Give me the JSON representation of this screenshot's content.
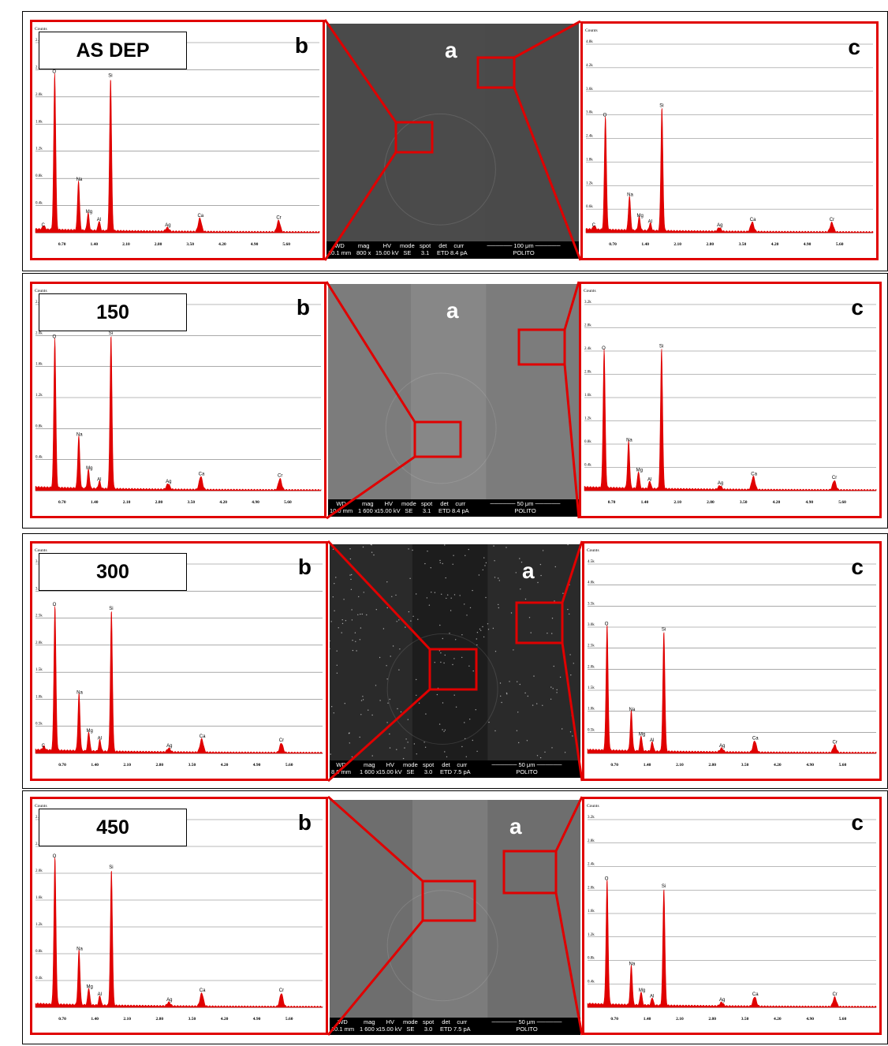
{
  "colors": {
    "spectrum": "#e00000",
    "frame": "#e00000"
  },
  "spectrum_labels": {
    "counts": "Counts",
    "x_ticks": [
      "0.70",
      "1.40",
      "2.10",
      "2.80",
      "3.50",
      "4.20",
      "4.90",
      "5.60"
    ],
    "peaks": [
      "C",
      "O",
      "Na",
      "Mg",
      "Al",
      "Si",
      "Ag",
      "Ca",
      "Cr"
    ]
  },
  "rows": [
    {
      "stage": "AS DEP",
      "letters": {
        "b": "b",
        "a": "a",
        "c": "c"
      },
      "sem": {
        "headers": [
          "WD",
          "mag",
          "HV",
          "mode",
          "spot",
          "det",
          "curr"
        ],
        "values": [
          "10.1 mm",
          "800 x",
          "15.00 kV",
          "SE",
          "3.1",
          "ETD",
          "8.4 pA"
        ],
        "scale": "100 μm",
        "lab": "POLITO"
      },
      "b_yticks": [
        "2.8k",
        "2.4k",
        "2.0k",
        "1.6k",
        "1.2k",
        "0.8k",
        "0.4k"
      ],
      "c_yticks": [
        "4.8k",
        "4.2k",
        "3.6k",
        "3.0k",
        "2.4k",
        "1.8k",
        "1.2k",
        "0.6k"
      ]
    },
    {
      "stage": "150",
      "letters": {
        "b": "b",
        "a": "a",
        "c": "c"
      },
      "sem": {
        "headers": [
          "WD",
          "mag",
          "HV",
          "mode",
          "spot",
          "det",
          "curr"
        ],
        "values": [
          "10.0 mm",
          "1 600 x",
          "15.00 kV",
          "SE",
          "3.1",
          "ETD",
          "8.4 pA"
        ],
        "scale": "50 μm",
        "lab": "POLITO"
      },
      "b_yticks": [
        "2.4k",
        "2.0k",
        "1.6k",
        "1.2k",
        "0.8k",
        "0.4k"
      ],
      "c_yticks": [
        "3.2k",
        "2.8k",
        "2.4k",
        "2.0k",
        "1.6k",
        "1.2k",
        "0.8k",
        "0.4k"
      ]
    },
    {
      "stage": "300",
      "letters": {
        "b": "b",
        "a": "a",
        "c": "c"
      },
      "sem": {
        "headers": [
          "WD",
          "mag",
          "HV",
          "mode",
          "spot",
          "det",
          "curr"
        ],
        "values": [
          "8.9 mm",
          "1 600 x",
          "15.00 kV",
          "SE",
          "3.0",
          "ETD",
          "7.5 pA"
        ],
        "scale": "50 μm",
        "lab": "POLITO"
      },
      "b_yticks": [
        "3.5k",
        "3.0k",
        "2.5k",
        "2.0k",
        "1.5k",
        "1.0k",
        "0.5k"
      ],
      "c_yticks": [
        "4.5k",
        "4.0k",
        "3.5k",
        "3.0k",
        "2.5k",
        "2.0k",
        "1.5k",
        "1.0k",
        "0.5k"
      ]
    },
    {
      "stage": "450",
      "letters": {
        "b": "b",
        "a": "a",
        "c": "c"
      },
      "sem": {
        "headers": [
          "WD",
          "mag",
          "HV",
          "mode",
          "spot",
          "det",
          "curr"
        ],
        "values": [
          "10.1 mm",
          "1 600 x",
          "15.00 kV",
          "SE",
          "3.0",
          "ETD",
          "7.5 pA"
        ],
        "scale": "50 μm",
        "lab": "POLITO"
      },
      "b_yticks": [
        "2.8k",
        "2.4k",
        "2.0k",
        "1.6k",
        "1.2k",
        "0.8k",
        "0.4k"
      ],
      "c_yticks": [
        "3.2k",
        "2.8k",
        "2.4k",
        "2.0k",
        "1.6k",
        "1.2k",
        "0.8k",
        "0.4k"
      ]
    }
  ]
}
